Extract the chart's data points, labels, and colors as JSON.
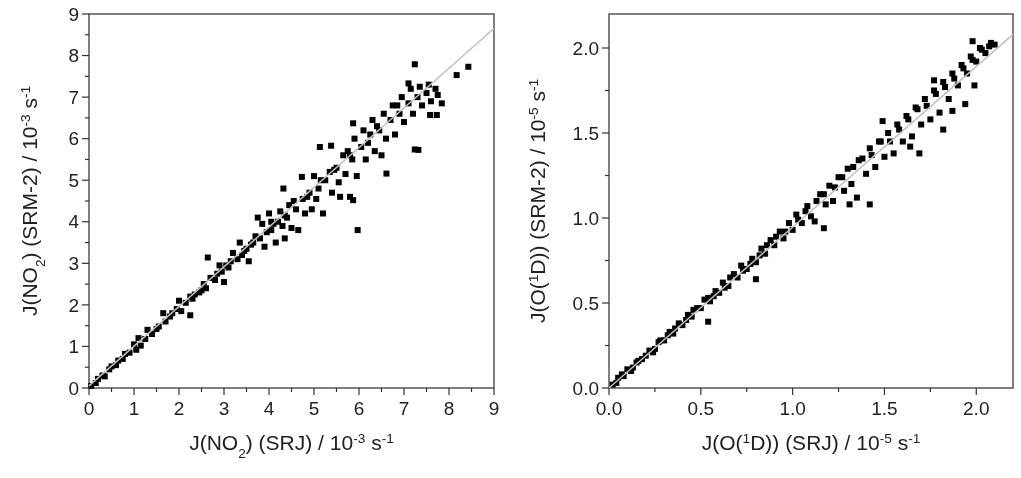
{
  "chart_data": [
    {
      "type": "scatter",
      "xlabel": "J(NO$_{2}$) (SRJ) / 10$^{-3}$ s$^{-1}$",
      "ylabel": "J(NO$_{2}$) (SRM-2) / 10$^{-3}$ s$^{-1}$",
      "xlim": [
        0,
        9
      ],
      "ylim": [
        0,
        9
      ],
      "xticks": [
        0,
        {
          "value": 0.5,
          "label": null
        },
        1,
        {
          "value": 1.5,
          "label": null
        },
        2,
        {
          "value": 2.5,
          "label": null
        },
        3,
        {
          "value": 3.5,
          "label": null
        },
        4,
        {
          "value": 4.5,
          "label": null
        },
        5,
        {
          "value": 5.5,
          "label": null
        },
        6,
        {
          "value": 6.5,
          "label": null
        },
        7,
        {
          "value": 7.5,
          "label": null
        },
        8,
        {
          "value": 8.5,
          "label": null
        },
        9
      ],
      "yticks": [
        0,
        {
          "value": 0.5,
          "label": null
        },
        1,
        {
          "value": 1.5,
          "label": null
        },
        2,
        {
          "value": 2.5,
          "label": null
        },
        3,
        {
          "value": 3.5,
          "label": null
        },
        4,
        {
          "value": 4.5,
          "label": null
        },
        5,
        {
          "value": 5.5,
          "label": null
        },
        6,
        {
          "value": 6.5,
          "label": null
        },
        7,
        {
          "value": 7.5,
          "label": null
        },
        8,
        {
          "value": 8.5,
          "label": null
        },
        9
      ],
      "series": [
        {
          "color": "#000000",
          "marker": "square",
          "x": [
            0.05,
            0.15,
            0.2,
            0.3,
            0.35,
            0.45,
            0.5,
            0.6,
            0.65,
            0.75,
            0.8,
            0.9,
            1.0,
            1.05,
            1.1,
            1.15,
            1.25,
            1.3,
            1.4,
            1.5,
            1.55,
            1.65,
            1.7,
            1.8,
            1.85,
            1.95,
            2.0,
            2.05,
            2.15,
            2.25,
            2.25,
            2.35,
            2.45,
            2.55,
            2.6,
            2.7,
            2.8,
            2.9,
            2.95,
            3.0,
            3.05,
            3.15,
            3.2,
            3.3,
            3.35,
            3.4,
            3.5,
            3.55,
            3.6,
            3.7,
            3.75,
            3.8,
            3.85,
            3.9,
            3.95,
            4.0,
            4.05,
            4.1,
            4.15,
            4.2,
            4.25,
            4.3,
            4.35,
            4.4,
            4.45,
            4.5,
            4.6,
            4.65,
            4.75,
            4.8,
            4.9,
            4.95,
            5.0,
            5.05,
            5.1,
            5.2,
            5.25,
            5.35,
            5.4,
            5.5,
            5.55,
            5.65,
            5.7,
            5.75,
            5.85,
            5.9,
            5.95,
            6.05,
            6.1,
            6.15,
            6.25,
            6.3,
            6.35,
            6.45,
            6.5,
            6.55,
            6.6,
            6.7,
            6.75,
            6.8,
            6.9,
            6.95,
            7.0,
            7.1,
            7.15,
            7.2,
            7.3,
            7.35,
            7.4,
            7.5,
            7.55,
            7.6,
            7.7,
            7.75,
            2.64,
            5.97,
            7.24,
            8.17,
            8.43,
            7.24,
            7.32,
            6.61,
            5.8,
            5.87,
            5.58,
            5.13,
            5.38,
            5.87,
            4.73,
            4.32,
            7.84,
            7.73,
            7.58,
            7.1,
            2.3,
            2.5,
            2.85,
            3.1,
            3.45,
            3.65,
            4.05,
            4.35,
            4.55,
            4.85,
            5.15,
            5.45,
            5.8,
            6.2,
            6.4,
            6.85
          ],
          "values": [
            0.05,
            0.12,
            0.22,
            0.3,
            0.28,
            0.45,
            0.52,
            0.55,
            0.66,
            0.7,
            0.82,
            0.85,
            1.05,
            0.92,
            1.2,
            1.02,
            1.18,
            1.4,
            1.3,
            1.42,
            1.48,
            1.8,
            1.6,
            1.72,
            1.8,
            1.9,
            2.1,
            1.85,
            2.05,
            1.75,
            2.2,
            2.25,
            2.3,
            2.5,
            2.4,
            2.65,
            2.6,
            2.95,
            2.8,
            2.55,
            2.95,
            3.05,
            3.25,
            3.1,
            3.5,
            3.2,
            3.35,
            3.05,
            3.45,
            3.65,
            4.1,
            3.6,
            3.95,
            3.4,
            3.75,
            4.2,
            3.8,
            3.95,
            3.5,
            4.0,
            4.25,
            3.9,
            3.6,
            4.1,
            4.4,
            3.85,
            4.3,
            3.8,
            4.55,
            4.2,
            4.7,
            4.3,
            5.1,
            4.55,
            4.8,
            4.2,
            5.0,
            5.2,
            4.7,
            5.3,
            4.95,
            5.6,
            5.15,
            5.7,
            5.5,
            6.0,
            5.1,
            5.8,
            6.2,
            5.5,
            6.1,
            6.45,
            5.7,
            6.2,
            5.6,
            6.6,
            6.0,
            6.45,
            6.8,
            6.1,
            6.6,
            7.0,
            6.4,
            6.85,
            7.2,
            6.6,
            7.0,
            7.25,
            6.8,
            7.1,
            7.3,
            6.9,
            7.2,
            7.05,
            3.14,
            3.8,
            7.79,
            7.53,
            7.73,
            5.74,
            5.73,
            5.16,
            4.6,
            4.52,
            4.6,
            5.8,
            5.83,
            6.37,
            5.08,
            4.8,
            6.85,
            6.57,
            6.57,
            7.33,
            2.15,
            2.35,
            2.75,
            2.9,
            3.3,
            3.5,
            4.0,
            4.15,
            4.5,
            4.6,
            5.0,
            5.25,
            5.6,
            5.9,
            6.3,
            6.8
          ]
        },
        {
          "type": "line",
          "color": "#c0c0c0",
          "x": [
            0,
            9
          ],
          "values": [
            0.05,
            8.65
          ]
        }
      ]
    },
    {
      "type": "scatter",
      "xlabel": "J(O($^{1}$D)) (SRJ) / 10$^{-5}$ s$^{-1}$",
      "ylabel": "J(O($^{1}$D)) (SRM-2) / 10$^{-5}$ s$^{-1}$",
      "xlim": [
        0,
        2.2
      ],
      "ylim": [
        0,
        2.2
      ],
      "xticks": [
        {
          "value": 0,
          "label": "0.0"
        },
        {
          "value": 0.25,
          "label": null
        },
        {
          "value": 0.5,
          "label": "0.5"
        },
        {
          "value": 0.75,
          "label": null
        },
        {
          "value": 1,
          "label": "1.0"
        },
        {
          "value": 1.25,
          "label": null
        },
        {
          "value": 1.5,
          "label": "1.5"
        },
        {
          "value": 1.75,
          "label": null
        },
        {
          "value": 2,
          "label": "2.0"
        }
      ],
      "yticks": [
        {
          "value": 0,
          "label": "0.0"
        },
        {
          "value": 0.25,
          "label": null
        },
        {
          "value": 0.5,
          "label": "0.5"
        },
        {
          "value": 0.75,
          "label": null
        },
        {
          "value": 1,
          "label": "1.0"
        },
        {
          "value": 1.25,
          "label": null
        },
        {
          "value": 1.5,
          "label": "1.5"
        },
        {
          "value": 1.75,
          "label": null
        },
        {
          "value": 2,
          "label": "2.0"
        }
      ],
      "series": [
        {
          "color": "#000000",
          "marker": "square",
          "x": [
            0.02,
            0.05,
            0.08,
            0.1,
            0.13,
            0.16,
            0.2,
            0.22,
            0.25,
            0.28,
            0.3,
            0.33,
            0.35,
            0.38,
            0.4,
            0.43,
            0.45,
            0.48,
            0.5,
            0.52,
            0.55,
            0.58,
            0.6,
            0.62,
            0.65,
            0.68,
            0.7,
            0.72,
            0.75,
            0.78,
            0.8,
            0.83,
            0.85,
            0.88,
            0.9,
            0.93,
            0.95,
            0.98,
            1.0,
            1.02,
            1.05,
            1.08,
            1.1,
            1.12,
            1.15,
            1.18,
            1.2,
            1.22,
            1.25,
            1.28,
            1.3,
            1.32,
            1.35,
            1.36,
            1.4,
            1.42,
            1.45,
            1.47,
            1.5,
            1.52,
            1.55,
            1.57,
            1.6,
            1.62,
            1.65,
            1.67,
            1.7,
            1.72,
            1.75,
            1.77,
            1.8,
            1.82,
            1.85,
            1.87,
            1.9,
            1.92,
            1.95,
            1.97,
            2.0,
            2.02,
            2.05,
            2.08,
            2.1,
            1.98,
            1.77,
            1.49,
            1.42,
            1.17,
            1.31,
            0.8,
            0.54,
            1.69,
            1.64,
            1.82,
            1.94,
            1.99,
            1.87,
            0.04,
            0.07,
            0.12,
            0.15,
            0.18,
            0.24,
            0.27,
            0.32,
            0.36,
            0.42,
            0.46,
            0.54,
            0.57,
            0.63,
            0.66,
            0.73,
            0.77,
            0.82,
            0.86,
            0.91,
            0.96,
            1.03,
            1.07,
            1.13,
            1.17,
            1.23,
            1.27,
            1.33,
            1.38,
            1.43,
            1.48,
            1.53,
            1.58,
            1.63,
            1.68,
            1.73,
            1.78,
            1.83,
            1.88,
            1.93,
            1.98,
            2.03,
            2.07
          ],
          "values": [
            0.02,
            0.06,
            0.07,
            0.11,
            0.12,
            0.16,
            0.19,
            0.22,
            0.23,
            0.28,
            0.28,
            0.33,
            0.32,
            0.38,
            0.37,
            0.43,
            0.42,
            0.47,
            0.47,
            0.52,
            0.51,
            0.57,
            0.56,
            0.62,
            0.6,
            0.67,
            0.65,
            0.72,
            0.7,
            0.76,
            0.74,
            0.82,
            0.79,
            0.87,
            0.84,
            0.92,
            0.88,
            0.97,
            0.93,
            1.02,
            0.97,
            1.07,
            1.01,
            0.98,
            1.14,
            1.08,
            1.19,
            1.1,
            1.24,
            1.16,
            1.29,
            1.2,
            1.12,
            1.34,
            1.26,
            1.41,
            1.3,
            1.45,
            1.36,
            1.5,
            1.38,
            1.55,
            1.45,
            1.6,
            1.48,
            1.65,
            1.55,
            1.7,
            1.58,
            1.75,
            1.62,
            1.8,
            1.7,
            1.85,
            1.78,
            1.9,
            1.85,
            1.95,
            1.92,
            2.0,
            1.97,
            2.03,
            2.02,
            2.04,
            1.81,
            1.57,
            1.08,
            0.94,
            1.08,
            0.64,
            0.39,
            1.38,
            1.42,
            1.52,
            1.67,
            1.78,
            1.63,
            0.03,
            0.08,
            0.1,
            0.15,
            0.17,
            0.21,
            0.27,
            0.31,
            0.35,
            0.4,
            0.46,
            0.53,
            0.54,
            0.59,
            0.65,
            0.69,
            0.73,
            0.78,
            0.84,
            0.89,
            0.92,
            0.99,
            1.04,
            1.1,
            1.14,
            1.18,
            1.24,
            1.3,
            1.35,
            1.37,
            1.45,
            1.45,
            1.52,
            1.58,
            1.64,
            1.66,
            1.73,
            1.77,
            1.82,
            1.88,
            1.93,
            1.99,
            2.01
          ]
        },
        {
          "type": "line",
          "color": "#c0c0c0",
          "x": [
            0,
            2.2
          ],
          "values": [
            0,
            2.08
          ]
        }
      ]
    }
  ]
}
